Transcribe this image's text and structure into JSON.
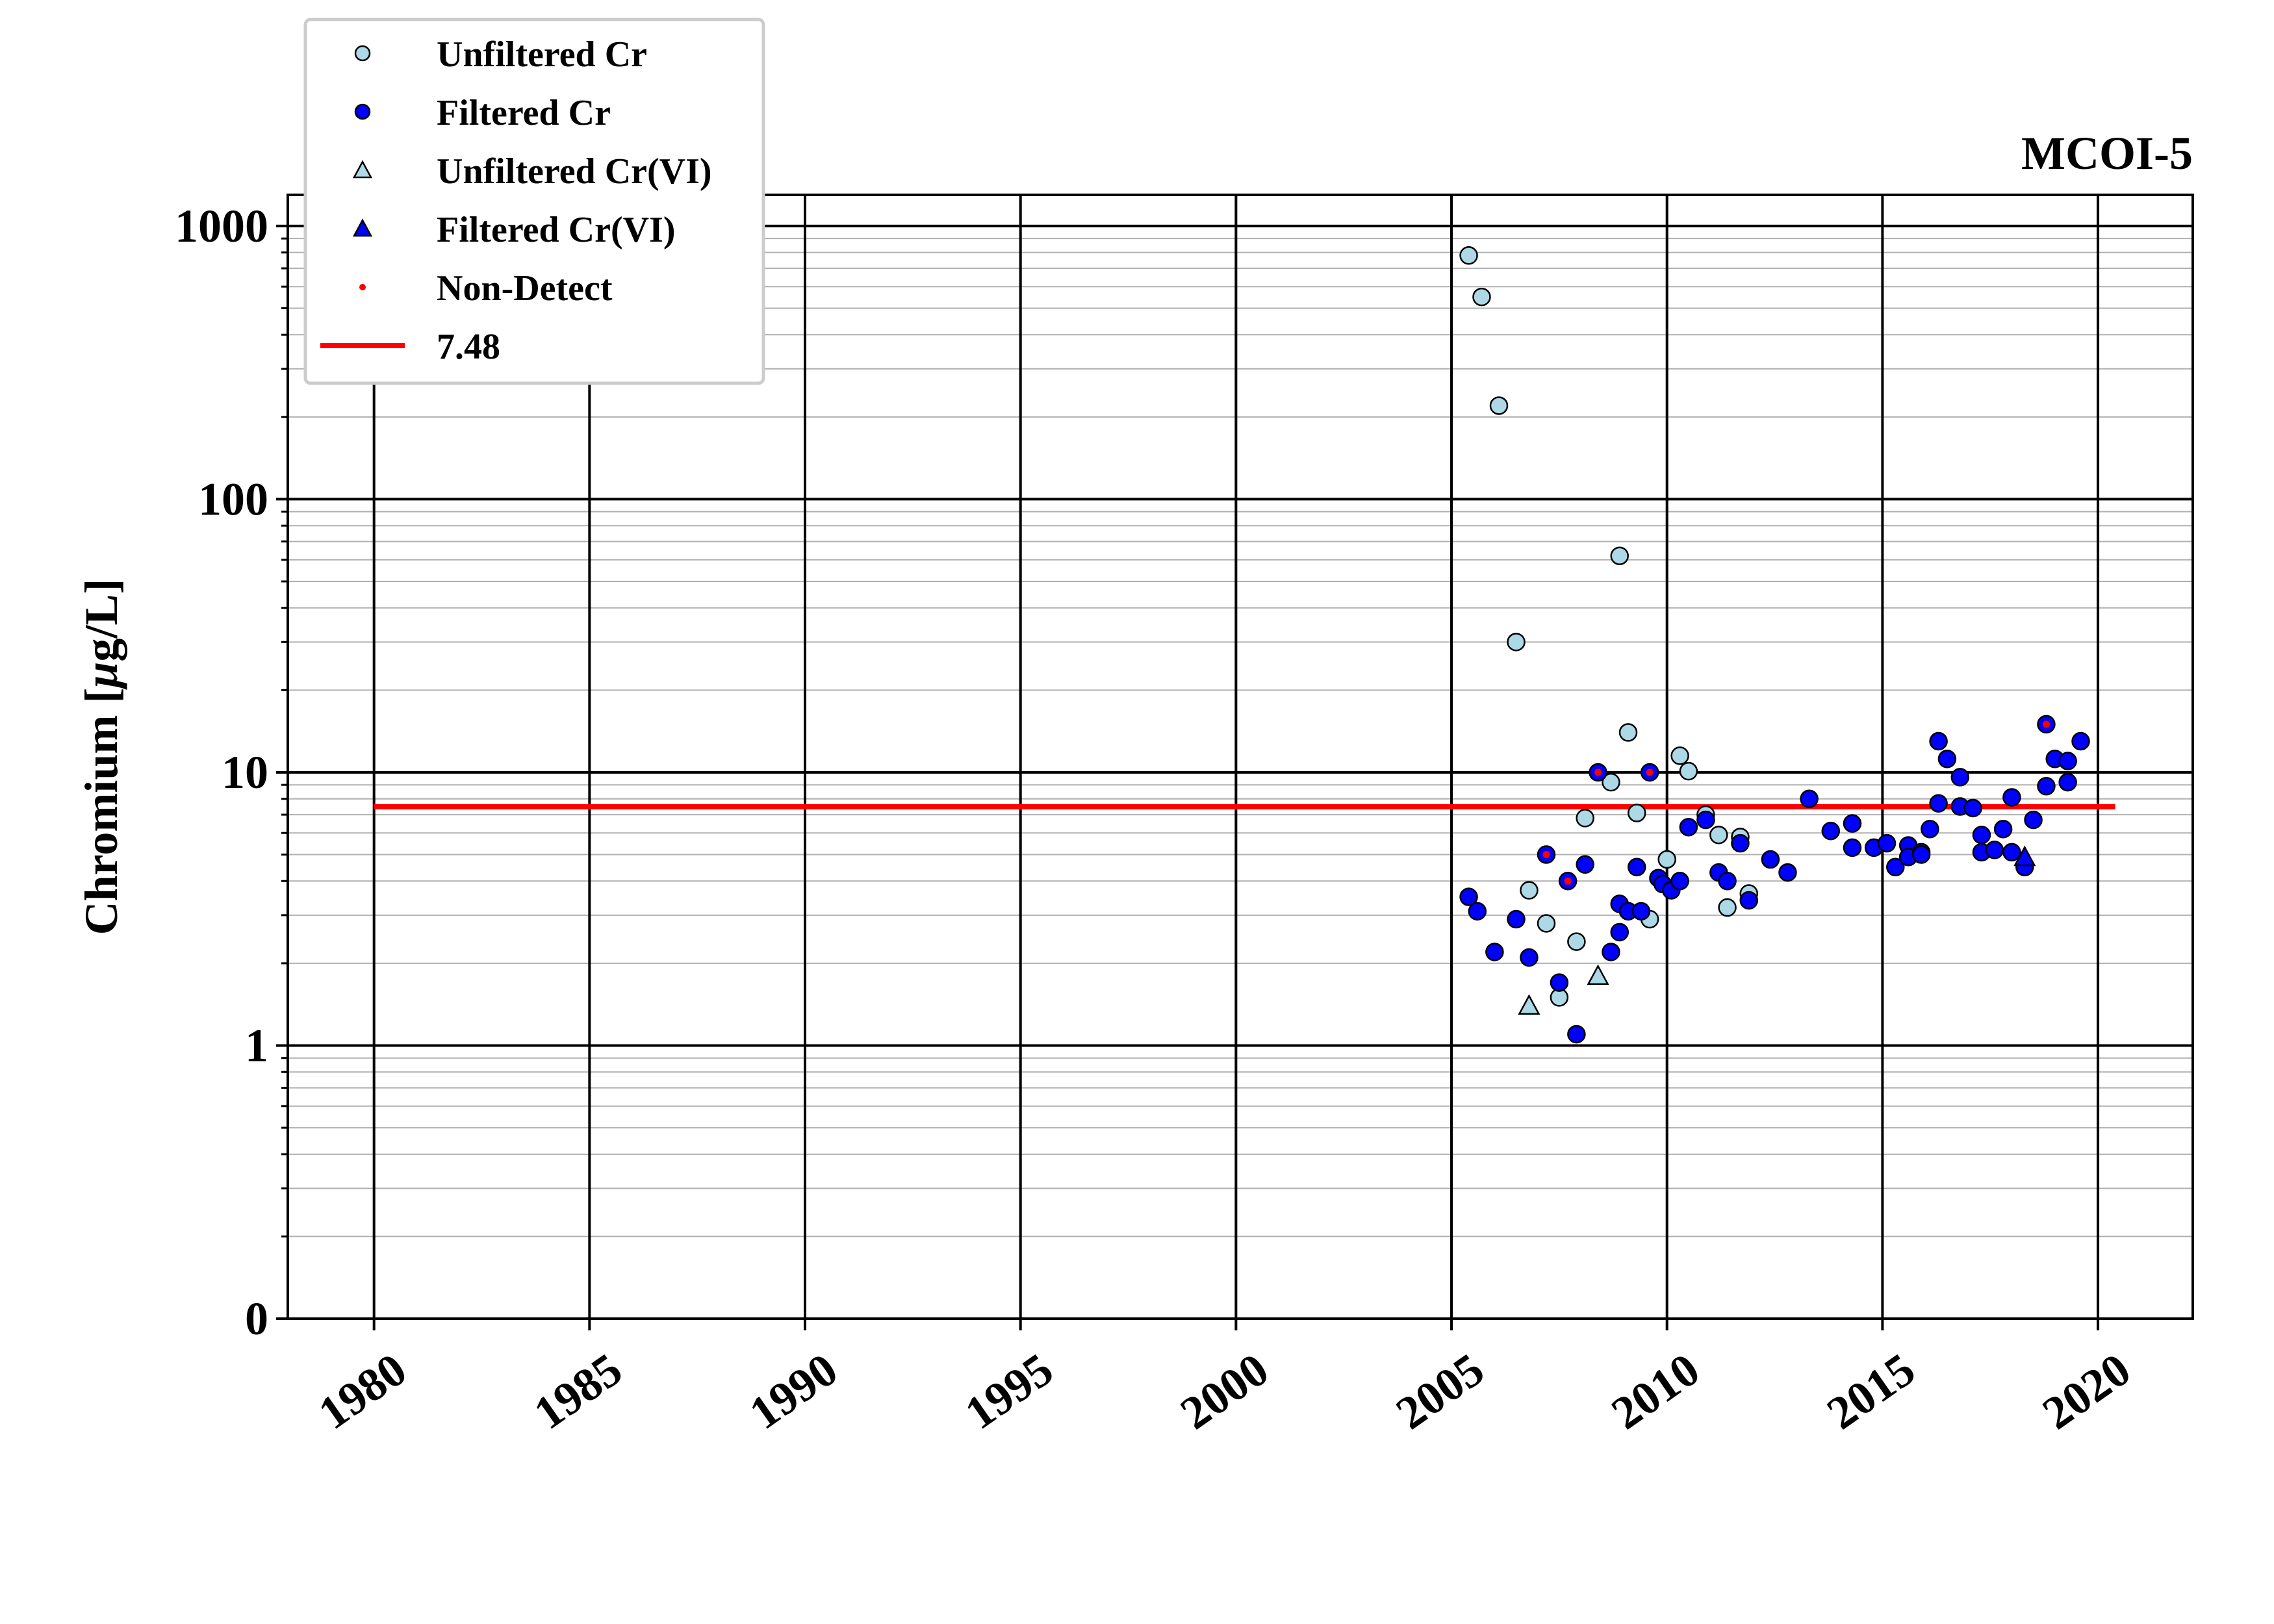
{
  "chart_data": {
    "type": "scatter",
    "title": "MCOI-5",
    "ylabel": "Chromium [$\\mu$g/L]",
    "ylabel_parts": {
      "pre": "Chromium [",
      "mu": "μ",
      "post": "g/L]"
    },
    "xlabel": "",
    "y_scale": "log",
    "xlim": [
      1978,
      2022.2
    ],
    "ylim": [
      0.1,
      1300
    ],
    "x_ticks": [
      1980,
      1985,
      1990,
      1995,
      2000,
      2005,
      2010,
      2015,
      2020
    ],
    "y_ticks": [
      {
        "value": 0.1,
        "label": "0"
      },
      {
        "value": 1,
        "label": "1"
      },
      {
        "value": 10,
        "label": "10"
      },
      {
        "value": 100,
        "label": "100"
      },
      {
        "value": 1000,
        "label": "1000"
      }
    ],
    "grid": true,
    "legend_position": "upper-left",
    "colors": {
      "unfiltered": "#add8e6",
      "filtered": "#0000ff",
      "nondetect": "#ff0000",
      "threshold": "#ff0000"
    },
    "legend": [
      {
        "label": "Unfiltered Cr",
        "marker": "circle",
        "color": "#add8e6"
      },
      {
        "label": "Filtered Cr",
        "marker": "circle",
        "color": "#0000ff"
      },
      {
        "label": "Unfiltered Cr(VI)",
        "marker": "triangle",
        "color": "#add8e6"
      },
      {
        "label": "Filtered Cr(VI)",
        "marker": "triangle",
        "color": "#0000ff"
      },
      {
        "label": "Non-Detect",
        "marker": "dot",
        "color": "#ff0000"
      },
      {
        "label": "7.48",
        "marker": "line",
        "color": "#ff0000"
      }
    ],
    "threshold_line": {
      "value": 7.48,
      "x_start": 1980,
      "x_end": 2020.4
    },
    "series": [
      {
        "name": "Unfiltered Cr",
        "marker": "circle",
        "color": "#add8e6",
        "points": [
          [
            2005.4,
            780
          ],
          [
            2005.7,
            550
          ],
          [
            2006.1,
            220
          ],
          [
            2006.5,
            30
          ],
          [
            2006.8,
            3.7
          ],
          [
            2007.2,
            2.8
          ],
          [
            2007.5,
            1.5
          ],
          [
            2007.9,
            2.4
          ],
          [
            2008.1,
            6.8
          ],
          [
            2008.7,
            9.2
          ],
          [
            2008.9,
            62
          ],
          [
            2009.1,
            14
          ],
          [
            2009.3,
            7.1
          ],
          [
            2009.6,
            2.9
          ],
          [
            2010.0,
            4.8
          ],
          [
            2010.3,
            11.5
          ],
          [
            2010.5,
            10.1
          ],
          [
            2010.9,
            7.0
          ],
          [
            2011.2,
            5.9
          ],
          [
            2011.7,
            5.8
          ],
          [
            2011.4,
            3.2
          ],
          [
            2011.9,
            3.6
          ]
        ]
      },
      {
        "name": "Filtered Cr",
        "marker": "circle",
        "color": "#0000ff",
        "points": [
          [
            2005.4,
            3.5
          ],
          [
            2005.6,
            3.1
          ],
          [
            2006.0,
            2.2
          ],
          [
            2006.5,
            2.9
          ],
          [
            2006.8,
            2.1
          ],
          [
            2007.2,
            5.0
          ],
          [
            2007.5,
            1.7
          ],
          [
            2007.7,
            4.0
          ],
          [
            2007.9,
            1.1
          ],
          [
            2008.1,
            4.6
          ],
          [
            2008.4,
            10.0
          ],
          [
            2008.7,
            2.2
          ],
          [
            2008.9,
            2.6
          ],
          [
            2008.9,
            3.3
          ],
          [
            2009.1,
            3.1
          ],
          [
            2009.3,
            4.5
          ],
          [
            2009.4,
            3.1
          ],
          [
            2009.6,
            10.0
          ],
          [
            2009.8,
            4.1
          ],
          [
            2009.9,
            3.9
          ],
          [
            2010.1,
            3.7
          ],
          [
            2010.3,
            4.0
          ],
          [
            2010.5,
            6.3
          ],
          [
            2010.9,
            6.7
          ],
          [
            2011.2,
            4.3
          ],
          [
            2011.4,
            4.0
          ],
          [
            2011.7,
            5.5
          ],
          [
            2011.9,
            3.4
          ],
          [
            2012.4,
            4.8
          ],
          [
            2012.8,
            4.3
          ],
          [
            2013.3,
            8.0
          ],
          [
            2013.8,
            6.1
          ],
          [
            2014.3,
            6.5
          ],
          [
            2014.3,
            5.3
          ],
          [
            2014.8,
            5.3
          ],
          [
            2015.1,
            5.5
          ],
          [
            2015.3,
            4.5
          ],
          [
            2015.6,
            5.4
          ],
          [
            2015.6,
            4.9
          ],
          [
            2015.9,
            5.1
          ],
          [
            2015.9,
            5.0
          ],
          [
            2016.1,
            6.2
          ],
          [
            2016.3,
            7.7
          ],
          [
            2016.3,
            13.0
          ],
          [
            2016.5,
            11.2
          ],
          [
            2016.8,
            9.6
          ],
          [
            2016.8,
            7.5
          ],
          [
            2017.1,
            7.4
          ],
          [
            2017.3,
            5.9
          ],
          [
            2017.3,
            5.1
          ],
          [
            2017.6,
            5.2
          ],
          [
            2017.8,
            6.2
          ],
          [
            2018.0,
            8.1
          ],
          [
            2018.0,
            5.1
          ],
          [
            2018.3,
            4.5
          ],
          [
            2018.5,
            6.7
          ],
          [
            2018.8,
            8.9
          ],
          [
            2018.8,
            15.0
          ],
          [
            2019.0,
            11.2
          ],
          [
            2019.3,
            11.0
          ],
          [
            2019.3,
            9.2
          ],
          [
            2019.6,
            13.0
          ]
        ]
      },
      {
        "name": "Unfiltered Cr(VI)",
        "marker": "triangle",
        "color": "#add8e6",
        "points": [
          [
            2006.8,
            1.4
          ],
          [
            2008.4,
            1.8
          ]
        ]
      },
      {
        "name": "Filtered Cr(VI)",
        "marker": "triangle",
        "color": "#0000ff",
        "points": [
          [
            2018.3,
            4.9
          ]
        ]
      },
      {
        "name": "Non-Detect",
        "marker": "dot",
        "color": "#ff0000",
        "points": [
          [
            2007.2,
            5.0
          ],
          [
            2007.7,
            4.0
          ],
          [
            2008.4,
            10.0
          ],
          [
            2009.6,
            10.0
          ],
          [
            2018.8,
            15.0
          ]
        ]
      }
    ]
  }
}
